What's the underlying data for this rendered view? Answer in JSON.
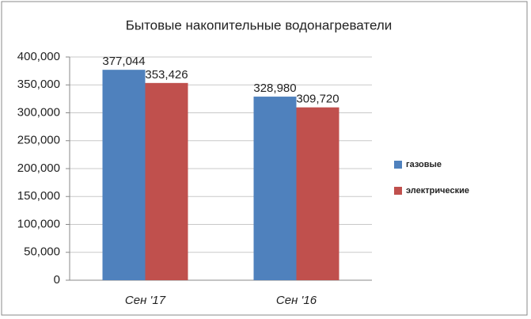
{
  "chart_data": {
    "type": "bar",
    "title": "Бытовые накопительные водонагреватели",
    "categories": [
      "Сен '17",
      "Сен '16"
    ],
    "series": [
      {
        "name": "газовые",
        "color": "#4f81bd",
        "values": [
          377044,
          328980
        ],
        "value_labels": [
          "377,044",
          "328,980"
        ]
      },
      {
        "name": "электрические",
        "color": "#c0504d",
        "values": [
          353426,
          309720
        ],
        "value_labels": [
          "353,426",
          "309,720"
        ]
      }
    ],
    "ylim": [
      0,
      400000
    ],
    "yticks": [
      0,
      {
        "value": 50000,
        "label": "50,000"
      },
      {
        "value": 100000,
        "label": "100,000"
      },
      {
        "value": 150000,
        "label": "150,000"
      },
      {
        "value": 200000,
        "label": "200,000"
      },
      {
        "value": 250000,
        "label": "250,000"
      },
      {
        "value": 300000,
        "label": "300,000"
      },
      {
        "value": 350000,
        "label": "350,000"
      },
      {
        "value": 400000,
        "label": "400,000"
      }
    ],
    "grid": true,
    "legend": "right"
  }
}
